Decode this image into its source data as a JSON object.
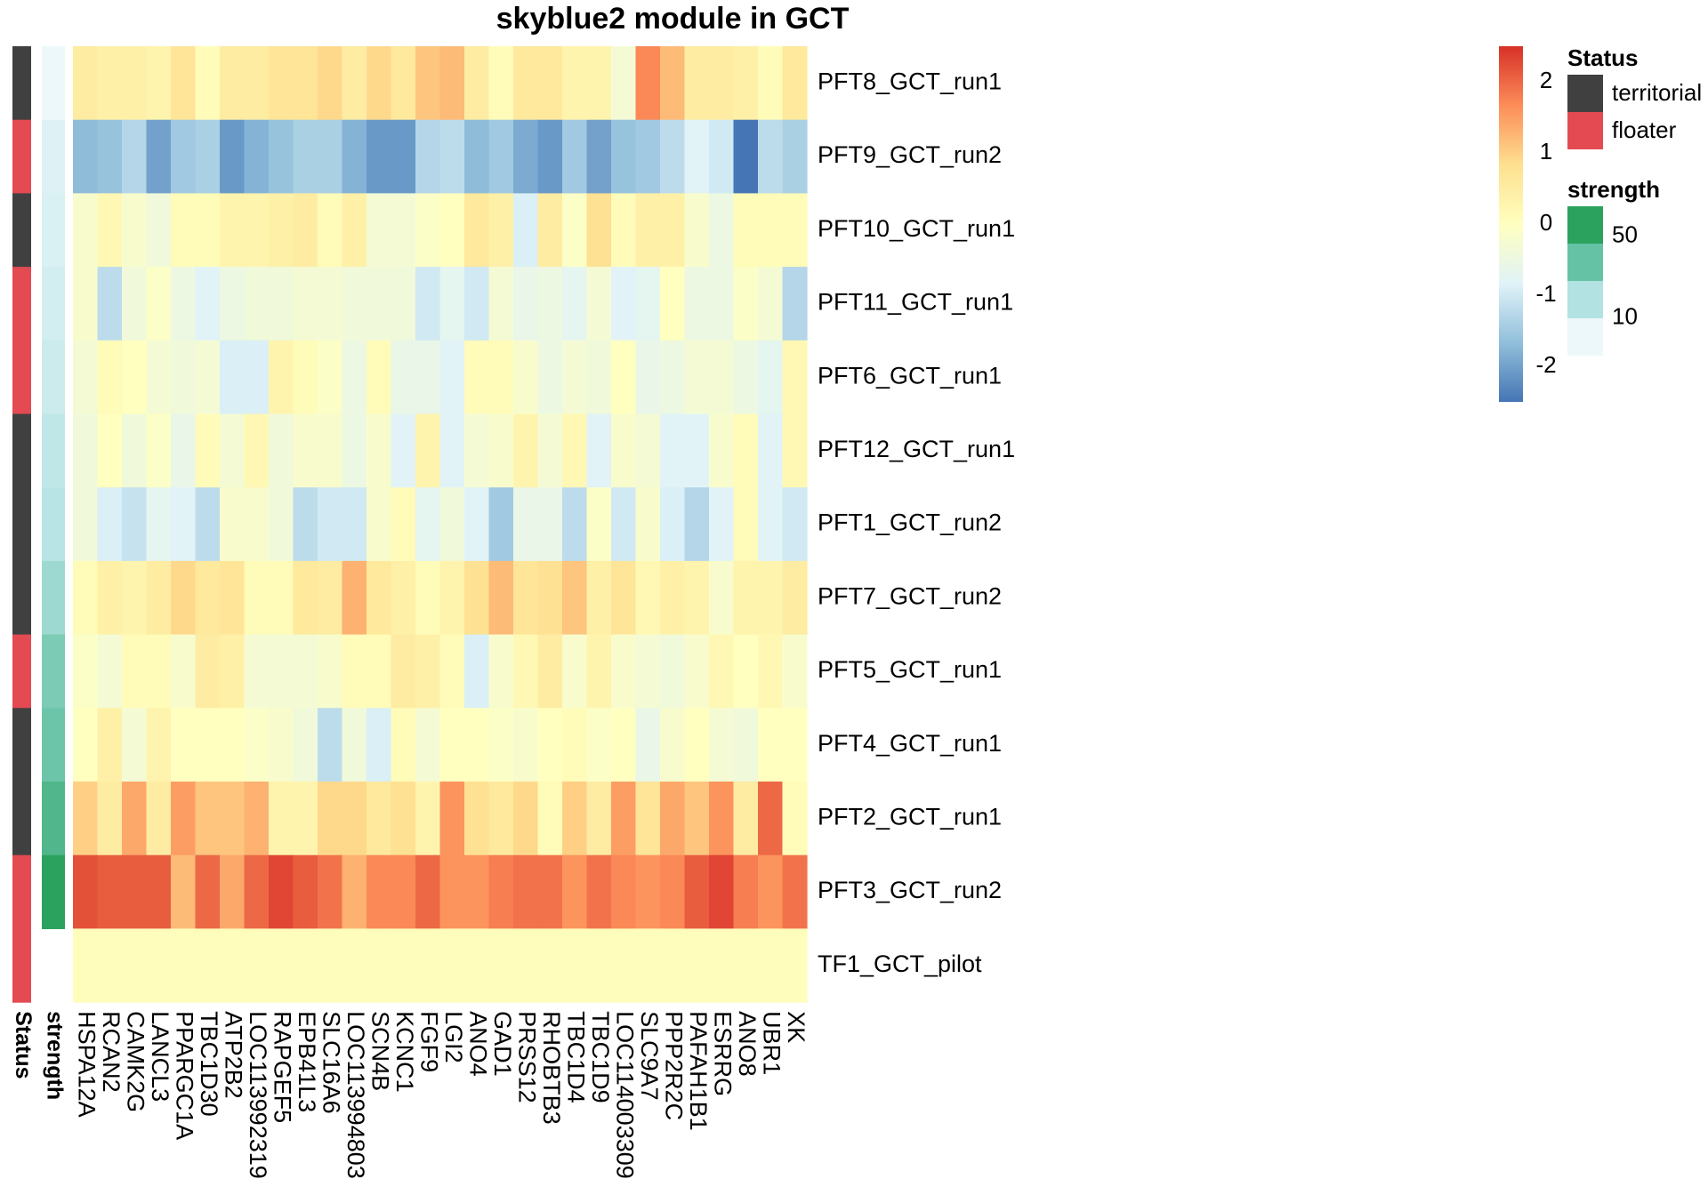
{
  "chart_data": {
    "type": "heatmap",
    "title": "skyblue2 module in GCT",
    "columns": [
      "HSPA12A",
      "RCAN2",
      "CAMK2G",
      "LANCL3",
      "PPARGC1A",
      "TBC1D30",
      "ATP2B2",
      "LOC113992319",
      "RAPGEF5",
      "EPB41L3",
      "SLC16A6",
      "LOC113994803",
      "SCN4B",
      "KCNC1",
      "FGF9",
      "LGI2",
      "ANO4",
      "GAD1",
      "PRSS12",
      "RHOBTB3",
      "TBC1D4",
      "TBC1D9",
      "LOC114003309",
      "SLC9A7",
      "PPP2R2C",
      "PAFAH1B1",
      "ESRRG",
      "ANO8",
      "UBR1",
      "XK"
    ],
    "rows": [
      {
        "label": "PFT8_GCT_run1",
        "status": "territorial",
        "strength": 8,
        "values": [
          0.5,
          0.4,
          0.4,
          0.3,
          0.7,
          0.1,
          0.5,
          0.5,
          0.7,
          0.7,
          0.9,
          0.5,
          0.9,
          0.6,
          1.1,
          1.2,
          0.5,
          0.1,
          0.6,
          0.6,
          0.3,
          0.3,
          -0.3,
          1.7,
          1.2,
          0.5,
          0.5,
          0.4,
          0.1,
          0.6
        ]
      },
      {
        "label": "PFT9_GCT_run2",
        "status": "floater",
        "strength": 12,
        "values": [
          -1.7,
          -1.6,
          -1.3,
          -2.0,
          -1.5,
          -1.4,
          -2.1,
          -1.8,
          -1.6,
          -1.4,
          -1.4,
          -1.8,
          -2.1,
          -2.1,
          -1.3,
          -1.2,
          -1.7,
          -1.5,
          -1.9,
          -2.1,
          -1.5,
          -2.0,
          -1.6,
          -1.5,
          -1.2,
          -0.8,
          -1.0,
          -2.5,
          -1.2,
          -1.4
        ]
      },
      {
        "label": "PFT10_GCT_run1",
        "status": "territorial",
        "strength": 13,
        "values": [
          -0.2,
          0.2,
          -0.2,
          -0.4,
          0.1,
          0.1,
          0.3,
          0.3,
          0.4,
          0.5,
          0.1,
          0.4,
          -0.3,
          -0.3,
          -0.1,
          0.0,
          0.6,
          0.4,
          -0.9,
          0.5,
          -0.1,
          0.8,
          0.1,
          0.4,
          0.4,
          -0.2,
          -0.5,
          0.1,
          0.1,
          0.1
        ]
      },
      {
        "label": "PFT11_GCT_run1",
        "status": "floater",
        "strength": 15,
        "values": [
          -0.2,
          -1.2,
          -0.4,
          -0.1,
          -0.5,
          -0.8,
          -0.5,
          -0.4,
          -0.4,
          -0.3,
          -0.3,
          -0.4,
          -0.4,
          -0.4,
          -1.0,
          -0.7,
          -1.0,
          -0.3,
          -0.6,
          -0.5,
          -0.7,
          -0.3,
          -0.8,
          -0.7,
          0.0,
          -0.5,
          -0.5,
          -0.1,
          -0.3,
          -1.3
        ]
      },
      {
        "label": "PFT6_GCT_run1",
        "status": "floater",
        "strength": 17,
        "values": [
          -0.3,
          0.1,
          0.0,
          -0.3,
          -0.4,
          -0.3,
          -0.9,
          -0.9,
          0.3,
          0.1,
          -0.1,
          -0.5,
          0.1,
          -0.6,
          -0.6,
          -0.8,
          0.1,
          0.1,
          -0.2,
          -0.5,
          -0.3,
          -0.4,
          0.0,
          -0.6,
          -0.5,
          -0.3,
          -0.3,
          -0.5,
          -0.7,
          0.2
        ]
      },
      {
        "label": "PFT12_GCT_run1",
        "status": "territorial",
        "strength": 20,
        "values": [
          -0.4,
          0.0,
          -0.4,
          -0.1,
          -0.6,
          0.1,
          -0.3,
          0.2,
          -0.4,
          -0.2,
          -0.2,
          -0.5,
          -0.2,
          -0.8,
          0.3,
          -0.8,
          -0.3,
          -0.2,
          0.3,
          -0.3,
          0.2,
          -0.8,
          -0.2,
          -0.3,
          -0.8,
          -0.8,
          -0.2,
          0.1,
          -0.8,
          0.2
        ]
      },
      {
        "label": "PFT1_GCT_run2",
        "status": "territorial",
        "strength": 22,
        "values": [
          -0.4,
          -0.9,
          -1.1,
          -0.7,
          -0.8,
          -1.2,
          -0.2,
          -0.2,
          -0.4,
          -1.2,
          -1.0,
          -1.0,
          -0.2,
          0.1,
          -0.7,
          -0.4,
          -0.8,
          -1.5,
          -0.6,
          -0.6,
          -1.2,
          -0.1,
          -1.0,
          -0.2,
          -0.9,
          -1.3,
          -0.8,
          0.1,
          -0.8,
          -1.0
        ]
      },
      {
        "label": "PFT7_GCT_run2",
        "status": "territorial",
        "strength": 28,
        "values": [
          0.1,
          0.4,
          0.3,
          0.5,
          0.9,
          0.6,
          0.7,
          0.1,
          0.1,
          0.6,
          0.5,
          1.3,
          0.6,
          0.4,
          0.1,
          0.3,
          0.8,
          1.2,
          0.7,
          0.8,
          1.1,
          0.4,
          0.7,
          0.2,
          0.4,
          0.3,
          -0.2,
          0.3,
          0.3,
          0.5
        ]
      },
      {
        "label": "PFT5_GCT_run1",
        "status": "floater",
        "strength": 35,
        "values": [
          -0.1,
          -0.3,
          0.1,
          0.1,
          -0.2,
          0.5,
          0.4,
          -0.3,
          -0.3,
          -0.3,
          -0.2,
          0.1,
          0.1,
          0.5,
          0.4,
          0.1,
          -0.9,
          -0.2,
          0.2,
          0.5,
          -0.2,
          0.3,
          -0.2,
          -0.3,
          -0.4,
          -0.2,
          0.2,
          0.0,
          0.2,
          -0.2
        ]
      },
      {
        "label": "PFT4_GCT_run1",
        "status": "territorial",
        "strength": 38,
        "values": [
          0.0,
          0.4,
          -0.3,
          0.3,
          0.0,
          0.0,
          0.0,
          -0.1,
          -0.2,
          -0.4,
          -1.2,
          -0.4,
          -0.9,
          0.1,
          -0.3,
          0.0,
          0.0,
          -0.1,
          -0.2,
          0.0,
          0.1,
          -0.1,
          0.0,
          -0.6,
          -0.2,
          0.0,
          -0.3,
          -0.4,
          0.0,
          0.0
        ]
      },
      {
        "label": "PFT2_GCT_run1",
        "status": "territorial",
        "strength": 45,
        "values": [
          1.0,
          0.5,
          1.4,
          0.5,
          1.5,
          1.1,
          1.1,
          1.3,
          0.3,
          0.3,
          0.9,
          0.9,
          0.6,
          0.8,
          0.3,
          1.6,
          0.8,
          0.6,
          0.9,
          0.1,
          1.0,
          0.5,
          1.5,
          0.7,
          1.4,
          1.1,
          1.6,
          0.5,
          2.0,
          0.1
        ]
      },
      {
        "label": "PFT3_GCT_run2",
        "status": "floater",
        "strength": 55,
        "values": [
          2.2,
          2.1,
          2.1,
          2.1,
          1.2,
          2.0,
          1.4,
          2.0,
          2.3,
          2.1,
          1.9,
          1.3,
          1.7,
          1.7,
          2.0,
          1.6,
          1.6,
          1.8,
          1.9,
          1.9,
          1.6,
          1.9,
          1.7,
          1.6,
          1.7,
          2.1,
          2.3,
          1.8,
          1.6,
          1.9
        ]
      },
      {
        "label": "TF1_GCT_pilot",
        "status": "floater",
        "strength": null,
        "values": [
          0.05,
          0.05,
          0.05,
          0.05,
          0.05,
          0.05,
          0.05,
          0.05,
          0.05,
          0.05,
          0.05,
          0.05,
          0.05,
          0.05,
          0.05,
          0.05,
          0.05,
          0.05,
          0.05,
          0.05,
          0.05,
          0.05,
          0.05,
          0.05,
          0.05,
          0.05,
          0.05,
          0.05,
          0.05,
          0.05
        ]
      }
    ],
    "annotation_labels": [
      "Status",
      "strength"
    ],
    "color_scale": {
      "min": -2.5,
      "max": 2.5,
      "ticks": [
        2,
        1,
        0,
        -1,
        -2
      ],
      "stops": [
        "#4575b4",
        "#91bfdb",
        "#e0f3f8",
        "#ffffbf",
        "#fee090",
        "#fc8d59",
        "#d73027"
      ]
    },
    "legend": {
      "status": {
        "title": "Status",
        "items": [
          {
            "label": "territorial",
            "color": "#404040"
          },
          {
            "label": "floater",
            "color": "#e34a52"
          }
        ]
      },
      "strength": {
        "title": "strength",
        "ticks": [
          50,
          10
        ],
        "colors": [
          "#2ca25f",
          "#66c2a4",
          "#b2e2e2",
          "#edf8fb"
        ],
        "min": 8,
        "max": 55
      }
    }
  }
}
